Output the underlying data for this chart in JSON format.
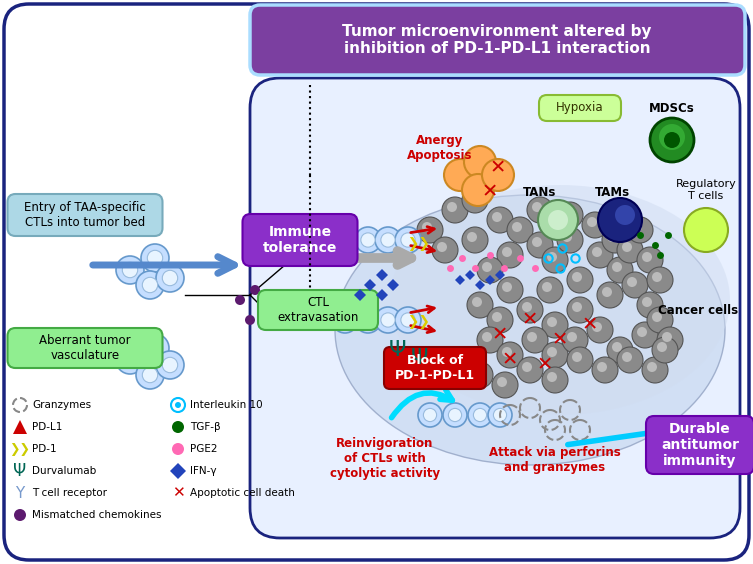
{
  "title": "Tumor microenvironment altered by\ninhibition of PD-1-PD-L1 interaction",
  "title_box_color": "#7B3FA0",
  "title_border_color": "#AADDFF",
  "bg_color": "#FFFFFF",
  "border_color": "#1A237E",
  "labels": {
    "immune_tolerance": "Immune\ntolerance",
    "ctl_extravasation": "CTL\nextravasation",
    "entry_ctls": "Entry of TAA-specific\nCTLs into tumor bed",
    "aberrant_tumor": "Aberrant tumor\nvasculature",
    "hypoxia": "Hypoxia",
    "mdscs": "MDSCs",
    "tans": "TANs",
    "tams": "TAMs",
    "regulatory_t": "Regulatory\nT cells",
    "cancer_cells": "Cancer cells",
    "anergy_apoptosis": "Anergy\nApoptosis",
    "block_pd1_pdl1": "Block of\nPD-1-PD-L1",
    "durable_antitumor": "Durable\nantitumor\nimmunity",
    "reinvigoration": "Reinvigoration\nof CTLs with\ncytolytic activity",
    "attack": "Attack via perforins\nand granzymes"
  }
}
